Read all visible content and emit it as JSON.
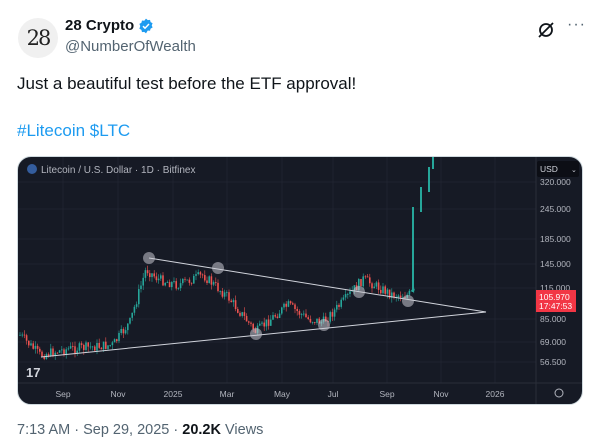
{
  "author": {
    "name": "28 Crypto",
    "handle": "@NumberOfWealth",
    "avatar_text": "28",
    "verified": true
  },
  "icons": {
    "grok": "grok-icon",
    "more": "more-icon",
    "verified": "verified-badge-icon"
  },
  "post": {
    "text": "Just a beautiful test before the ETF approval!",
    "hashtag": "#Litecoin",
    "cashtag": "$LTC"
  },
  "chart_image": {
    "title": "Litecoin / U.S. Dollar · 1D · Bitfinex",
    "currency": "USD",
    "y_ticks": [
      "320.000",
      "245.000",
      "185.000",
      "145.000",
      "115.000",
      "85.000",
      "69.000",
      "56.500"
    ],
    "price_tag": {
      "price": "105.970",
      "countdown": "17:47:53",
      "color": "#f23645"
    },
    "x_ticks": [
      "Sep",
      "Nov",
      "2025",
      "Mar",
      "May",
      "Jul",
      "Sep",
      "Nov",
      "2026"
    ],
    "up_color": "#26a69a",
    "down_color": "#ef5350"
  },
  "footer": {
    "time": "7:13 AM",
    "date": "Sep 29, 2025",
    "views": "20.2K",
    "views_label": "Views"
  }
}
